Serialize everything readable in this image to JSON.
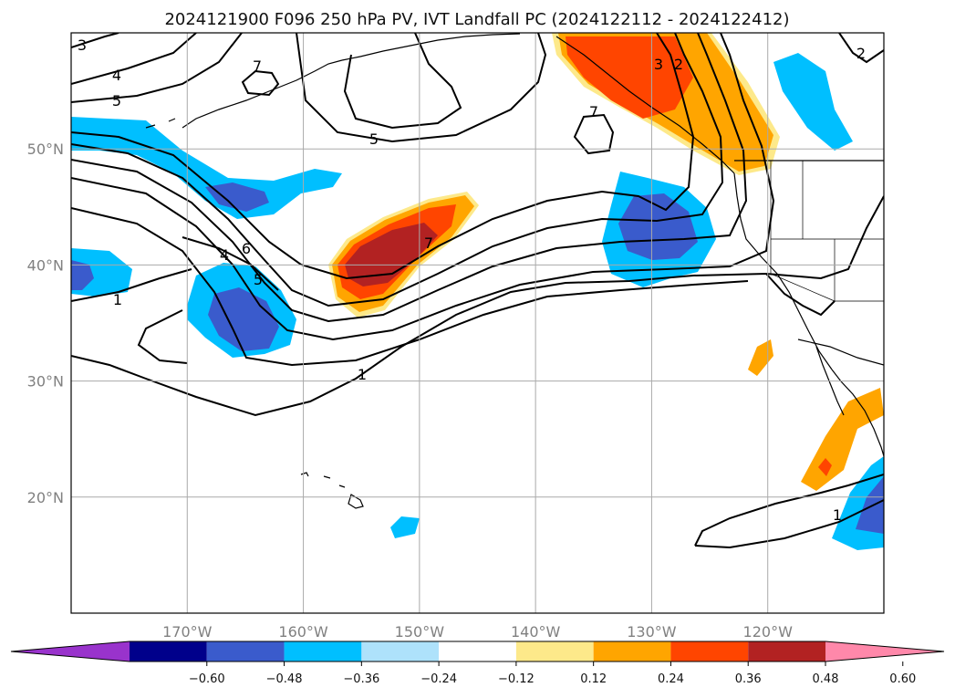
{
  "title": "2024121900 F096 250 hPa PV, IVT Landfall PC (2024122112 - 2024122412)",
  "map": {
    "lon_range": [
      -180,
      -110
    ],
    "lat_range": [
      10,
      60
    ],
    "lon_ticks": [
      "170°W",
      "160°W",
      "150°W",
      "140°W",
      "130°W",
      "120°W"
    ],
    "lat_ticks": [
      "50°N",
      "40°N",
      "30°N",
      "20°N"
    ],
    "grid": true
  },
  "colors": {
    "neg_060": "#9933cc",
    "neg_048": "#00008b",
    "neg_036": "#3a5bcc",
    "neg_024": "#00bfff",
    "neg_012": "#aee2fb",
    "zero": "#ffffff",
    "pos_012": "#fde98a",
    "pos_024": "#ffa500",
    "pos_036": "#ff4500",
    "pos_048": "#b22222",
    "pos_060": "#ff88aa"
  },
  "colorbar": {
    "tick_labels": [
      "−0.60",
      "−0.48",
      "−0.36",
      "−0.24",
      "−0.12",
      "0.12",
      "0.24",
      "0.36",
      "0.48",
      "0.60"
    ],
    "segment_colors": [
      "#9933cc",
      "#00008b",
      "#3a5bcc",
      "#00bfff",
      "#aee2fb",
      "#ffffff",
      "#fde98a",
      "#ffa500",
      "#ff4500",
      "#b22222",
      "#ff88aa"
    ]
  },
  "contour_labels": [
    "3",
    "4",
    "5",
    "7",
    "5",
    "7",
    "6",
    "4",
    "5",
    "1",
    "7",
    "1",
    "3",
    "2",
    "7",
    "2",
    "1"
  ]
}
